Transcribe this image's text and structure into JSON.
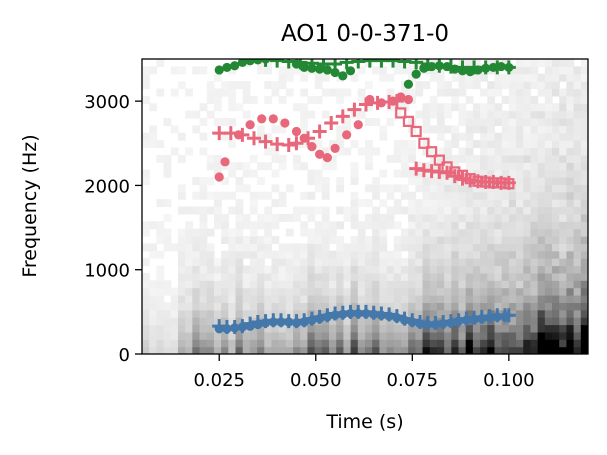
{
  "chart_data": {
    "type": "scatter",
    "title": "AO1 0-0-371-0",
    "xlabel": "Time (s)",
    "ylabel": "Frequency (Hz)",
    "xlim": [
      0.005,
      0.1205
    ],
    "ylim": [
      0,
      3500
    ],
    "xticks": [
      0.025,
      0.05,
      0.075,
      0.1
    ],
    "xtick_labels": [
      "0.025",
      "0.050",
      "0.075",
      "0.100"
    ],
    "yticks": [
      0,
      1000,
      2000,
      3000
    ],
    "ytick_labels": [
      "0",
      "1000",
      "2000",
      "3000"
    ],
    "grid": false,
    "legend": false,
    "background": "grayscale spectrogram",
    "series": [
      {
        "marker": "dot",
        "color": "#e8677a",
        "x": [
          0.025,
          0.0265,
          0.03,
          0.033,
          0.036,
          0.039,
          0.042,
          0.045,
          0.047,
          0.049,
          0.051,
          0.053,
          0.055,
          0.058,
          0.061,
          0.064,
          0.067,
          0.07,
          0.072,
          0.074
        ],
        "y": [
          2100,
          2280,
          2600,
          2720,
          2790,
          2790,
          2740,
          2640,
          2560,
          2460,
          2370,
          2330,
          2440,
          2600,
          2720,
          3020,
          2980,
          3000,
          3050,
          3020
        ]
      },
      {
        "marker": "plus",
        "color": "#e8677a",
        "x": [
          0.025,
          0.028,
          0.031,
          0.034,
          0.037,
          0.04,
          0.043,
          0.045,
          0.048,
          0.051,
          0.054,
          0.057,
          0.06,
          0.063,
          0.066,
          0.069,
          0.071
        ],
        "y": [
          2620,
          2620,
          2600,
          2560,
          2520,
          2490,
          2480,
          2500,
          2560,
          2640,
          2740,
          2820,
          2900,
          2960,
          2980,
          2990,
          3000
        ]
      },
      {
        "marker": "square",
        "color": "#e8677a",
        "x": [
          0.072,
          0.074,
          0.076,
          0.078,
          0.08,
          0.082,
          0.084,
          0.086,
          0.088,
          0.09,
          0.092,
          0.094,
          0.096,
          0.098,
          0.1
        ],
        "y": [
          2860,
          2760,
          2640,
          2500,
          2400,
          2300,
          2220,
          2160,
          2120,
          2080,
          2050,
          2040,
          2030,
          2030,
          2020
        ]
      },
      {
        "marker": "plus",
        "color": "#e8677a",
        "x": [
          0.076,
          0.078,
          0.08,
          0.082,
          0.084,
          0.086,
          0.088,
          0.09,
          0.092,
          0.094,
          0.096,
          0.098,
          0.1
        ],
        "y": [
          2200,
          2180,
          2170,
          2160,
          2150,
          2110,
          2080,
          2060,
          2050,
          2040,
          2040,
          2030,
          2030
        ]
      },
      {
        "marker": "dot",
        "color": "#228833",
        "x": [
          0.025,
          0.027,
          0.029,
          0.031,
          0.033,
          0.035,
          0.037,
          0.045,
          0.047,
          0.049,
          0.051,
          0.053,
          0.055,
          0.057,
          0.059,
          0.074,
          0.076,
          0.078,
          0.08,
          0.082,
          0.084,
          0.086,
          0.088,
          0.09,
          0.092,
          0.094,
          0.096,
          0.098,
          0.1
        ],
        "y": [
          3370,
          3400,
          3420,
          3460,
          3480,
          3490,
          3500,
          3440,
          3400,
          3390,
          3380,
          3370,
          3340,
          3300,
          3360,
          3200,
          3320,
          3390,
          3410,
          3420,
          3410,
          3380,
          3360,
          3350,
          3370,
          3390,
          3400,
          3410,
          3400
        ]
      },
      {
        "marker": "plus",
        "color": "#228833",
        "x": [
          0.037,
          0.04,
          0.043,
          0.046,
          0.049,
          0.052,
          0.055,
          0.058,
          0.061,
          0.064,
          0.067,
          0.07,
          0.073,
          0.076,
          0.079,
          0.082,
          0.085,
          0.088,
          0.091,
          0.094,
          0.097,
          0.1
        ],
        "y": [
          3490,
          3480,
          3470,
          3460,
          3450,
          3440,
          3440,
          3460,
          3470,
          3480,
          3480,
          3480,
          3470,
          3460,
          3440,
          3420,
          3410,
          3400,
          3400,
          3400,
          3400,
          3400
        ]
      },
      {
        "marker": "plus",
        "color": "#4477aa",
        "x": [
          0.025,
          0.027,
          0.029,
          0.031,
          0.033,
          0.035,
          0.037,
          0.039,
          0.041,
          0.043,
          0.045,
          0.047,
          0.049,
          0.051,
          0.053,
          0.055,
          0.057,
          0.059,
          0.061,
          0.063,
          0.065,
          0.067,
          0.069,
          0.071,
          0.073,
          0.075,
          0.077,
          0.079,
          0.081,
          0.083,
          0.085,
          0.087,
          0.089,
          0.091,
          0.093,
          0.095,
          0.097,
          0.099,
          0.1
        ],
        "y": [
          330,
          320,
          320,
          330,
          360,
          380,
          390,
          400,
          400,
          390,
          390,
          400,
          420,
          440,
          460,
          480,
          490,
          500,
          500,
          500,
          490,
          480,
          470,
          450,
          420,
          400,
          380,
          370,
          370,
          380,
          390,
          400,
          420,
          430,
          440,
          450,
          460,
          460,
          460
        ]
      },
      {
        "marker": "dot",
        "color": "#4477aa",
        "x": [
          0.025,
          0.027,
          0.029,
          0.031,
          0.033,
          0.035,
          0.037,
          0.039,
          0.041,
          0.043,
          0.045,
          0.047,
          0.049,
          0.051,
          0.053,
          0.055,
          0.057,
          0.059,
          0.061,
          0.063,
          0.065,
          0.067,
          0.069,
          0.071,
          0.073,
          0.075,
          0.077,
          0.079,
          0.081,
          0.083,
          0.085,
          0.087,
          0.089,
          0.091,
          0.093,
          0.095,
          0.097,
          0.099
        ],
        "y": [
          300,
          300,
          310,
          320,
          330,
          350,
          370,
          380,
          380,
          380,
          370,
          380,
          400,
          420,
          440,
          460,
          470,
          480,
          480,
          480,
          470,
          460,
          450,
          430,
          400,
          380,
          360,
          350,
          350,
          360,
          370,
          390,
          400,
          410,
          420,
          430,
          440,
          440
        ]
      }
    ]
  }
}
